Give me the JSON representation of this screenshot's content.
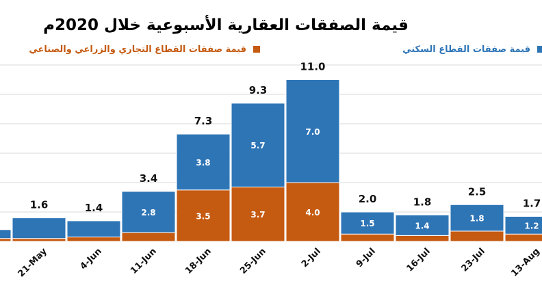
{
  "chart_data": {
    "type": "bar",
    "stacked": true,
    "title": "قيمة الصفقات العقارية الأسبوعية خلال 2020م",
    "categories": [
      "",
      "21-May",
      "4-Jun",
      "11-Jun",
      "18-Jun",
      "25-Jun",
      "2-Jul",
      "9-Jul",
      "16-Jul",
      "23-Jul",
      "13-Aug"
    ],
    "series": [
      {
        "name": "قيمة صفقات القطاع التجاري والزراعي والصناعي",
        "values": [
          0.2,
          0.2,
          0.3,
          0.6,
          3.5,
          3.7,
          4.0,
          0.5,
          0.4,
          0.7,
          0.5
        ],
        "labels": [
          "",
          "",
          "",
          "",
          "3.5",
          "3.7",
          "4.0",
          "",
          "",
          "",
          ""
        ]
      },
      {
        "name": "قيمة صفقات القطاع السكني",
        "values": [
          0.6,
          1.4,
          1.1,
          2.8,
          3.8,
          5.7,
          7.0,
          1.5,
          1.4,
          1.8,
          1.2
        ],
        "labels": [
          "",
          "",
          "",
          "2.8",
          "3.8",
          "5.7",
          "7.0",
          "1.5",
          "1.4",
          "1.8",
          "1.2"
        ]
      }
    ],
    "totals": [
      0.8,
      1.6,
      1.4,
      3.4,
      7.3,
      9.3,
      11.0,
      2.0,
      1.8,
      2.5,
      1.7
    ],
    "total_labels": [
      "",
      "1.6",
      "1.4",
      "3.4",
      "7.3",
      "9.3",
      "11.0",
      "2.0",
      "1.8",
      "2.5",
      "1.7"
    ],
    "ylim": [
      0,
      12
    ],
    "grid": true,
    "legend_position": "top",
    "colors": {
      "residential": "#2e75b6",
      "commercial": "#c55a11"
    }
  }
}
